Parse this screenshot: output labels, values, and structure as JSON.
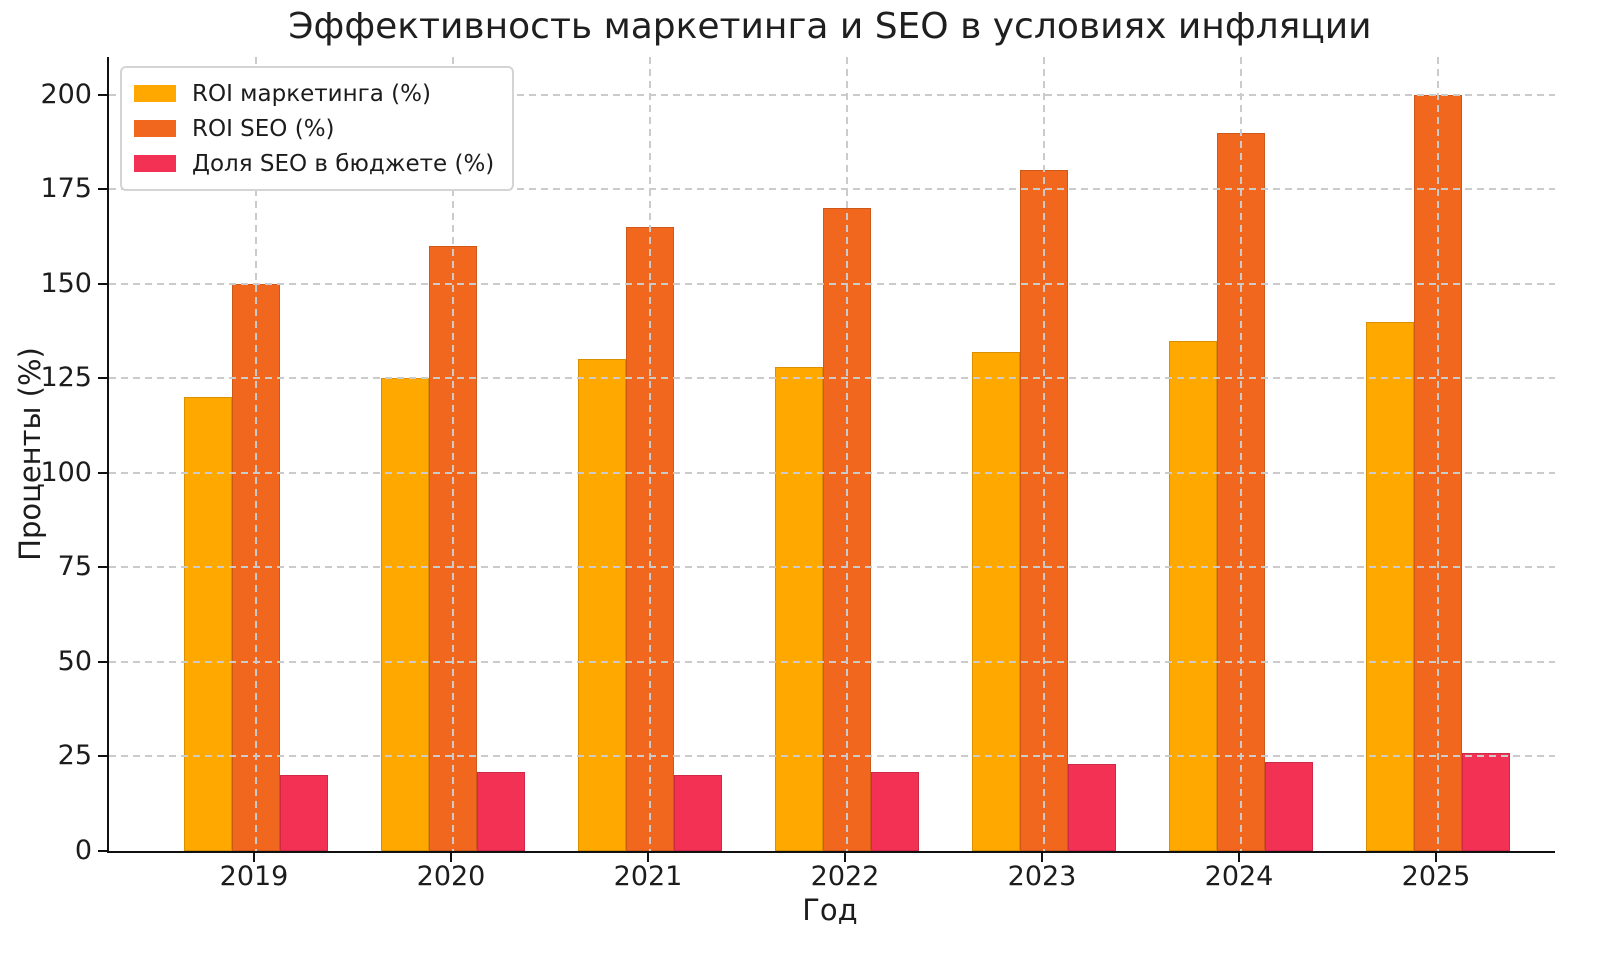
{
  "chart_data": {
    "type": "bar",
    "title": "Эффективность маркетинга и SEO в условиях инфляции",
    "xlabel": "Год",
    "ylabel": "Проценты (%)",
    "categories": [
      "2019",
      "2020",
      "2021",
      "2022",
      "2023",
      "2024",
      "2025"
    ],
    "series": [
      {
        "key": "roi-marketing",
        "name": "ROI маркетинга (%)",
        "color": "#FFA800",
        "values": [
          120,
          125,
          130,
          128,
          132,
          135,
          140
        ]
      },
      {
        "key": "roi-seo",
        "name": "ROI SEO (%)",
        "color": "#F2671E",
        "values": [
          150,
          160,
          165,
          170,
          180,
          190,
          200
        ]
      },
      {
        "key": "seo-budget-share",
        "name": "Доля SEO в бюджете (%)",
        "color": "#F23155",
        "values": [
          20,
          21,
          20,
          21,
          23,
          23.5,
          26
        ]
      }
    ],
    "ylim": [
      0,
      210
    ],
    "yticks": [
      0,
      25,
      50,
      75,
      100,
      125,
      150,
      175,
      200
    ],
    "grid": true,
    "grid_style": "dashed",
    "grid_color": "#cbcbcb",
    "legend_position": "upper-left"
  }
}
